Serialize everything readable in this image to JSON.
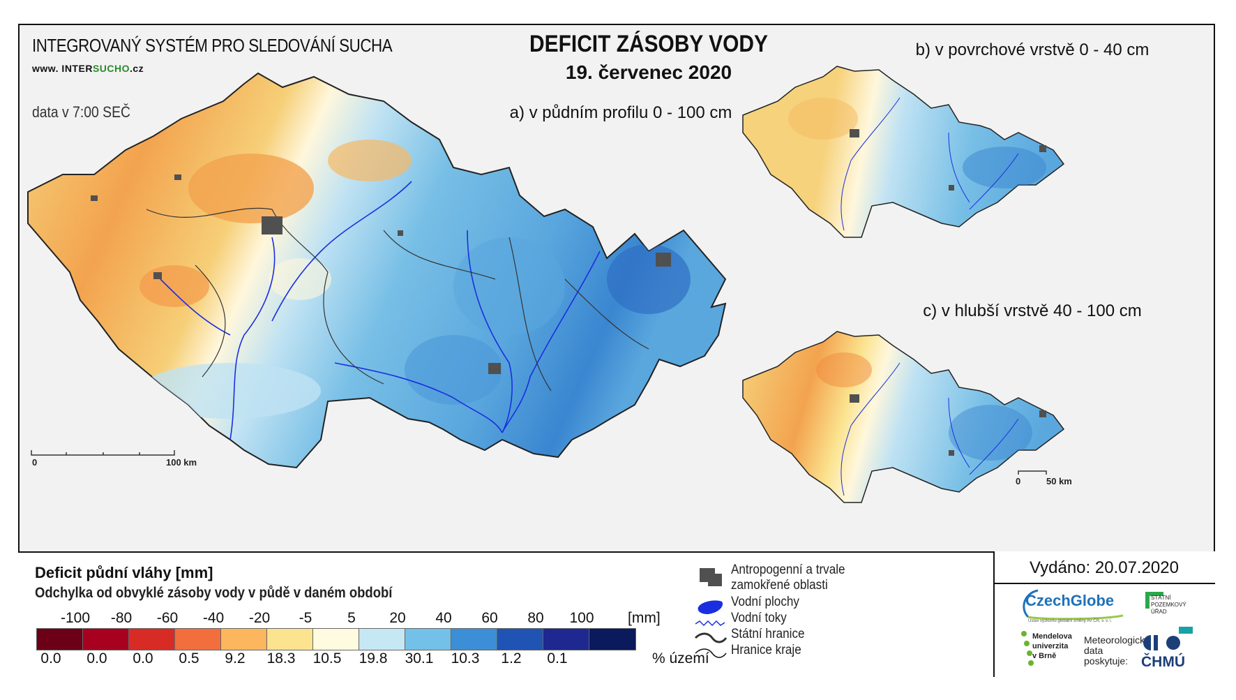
{
  "header": {
    "organization": "INTEGROVANÝ SYSTÉM PRO SLEDOVÁNÍ SUCHA",
    "website_prefix": "www. INTER",
    "website_green": "SUCHO",
    "website_suffix": ".cz",
    "data_time": "data v 7:00 SEČ",
    "title": "DEFICIT ZÁSOBY VODY",
    "date": "19. červenec 2020"
  },
  "maps": {
    "main_label": "a) v půdním profilu 0 - 100 cm",
    "surface_label": "b) v povrchové vrstvě 0 - 40 cm",
    "deep_label": "c) v hlubší vrstvě 40 - 100 cm",
    "main_scale": {
      "start": "0",
      "end": "100 km"
    },
    "small_scale": {
      "start": "0",
      "end": "50 km"
    }
  },
  "legend": {
    "title": "Deficit půdní vláhy  [mm]",
    "subtitle": "Odchylka od obvyklé zásoby vody v půdě v daném období",
    "thresholds": [
      "-100",
      "-80",
      "-60",
      "-40",
      "-20",
      "-5",
      "5",
      "20",
      "40",
      "60",
      "80",
      "100"
    ],
    "unit": "[mm]",
    "classes": [
      {
        "color": "#6b0017",
        "pct": "0.0"
      },
      {
        "color": "#a8001f",
        "pct": "0.0"
      },
      {
        "color": "#d92b26",
        "pct": "0.0"
      },
      {
        "color": "#f26e3c",
        "pct": "0.5"
      },
      {
        "color": "#fbb65e",
        "pct": "9.2"
      },
      {
        "color": "#fbe38f",
        "pct": "18.3"
      },
      {
        "color": "#fffbe0",
        "pct": "10.5"
      },
      {
        "color": "#c6e8f5",
        "pct": "19.8"
      },
      {
        "color": "#73c1e8",
        "pct": "30.1"
      },
      {
        "color": "#3c8fd6",
        "pct": "10.3"
      },
      {
        "color": "#1f54b5",
        "pct": "1.2"
      },
      {
        "color": "#1e2890",
        "pct": "0.1"
      },
      {
        "color": "#0b1a5c",
        "pct": ""
      }
    ],
    "pct_unit": "% území"
  },
  "features": {
    "anthropogenic": "Antropogenní a trvale",
    "anthropogenic_2": "zamokřené oblasti",
    "water_bodies": "Vodní plochy",
    "rivers": "Vodní toky",
    "state_border": "Státní hranice",
    "region_border": "Hranice kraje"
  },
  "issued": "Vydáno: 20.07.2020",
  "logos": {
    "czechglobe": "CzechGlobe",
    "czechglobe_sub": "Ústav výzkumu globální změny AV ČR, v. v. i.",
    "spu": [
      "STÁTNÍ",
      "POZEMKOVÝ",
      "ÚŘAD"
    ],
    "mendel": [
      "Mendelova",
      "univerzita",
      "v Brně"
    ],
    "meteo": [
      "Meteorologická",
      "data",
      "poskytuje:"
    ],
    "chmu": "ČHMÚ"
  },
  "colors": {
    "dry_dark": "#f3a34e",
    "dry_light": "#f6d27c",
    "neutral": "#fff7dc",
    "wet_light": "#bfe2f3",
    "wet_mid": "#78bfe6",
    "wet_dark": "#3a86d0",
    "river": "#1a2ee0",
    "urban": "#505050"
  }
}
